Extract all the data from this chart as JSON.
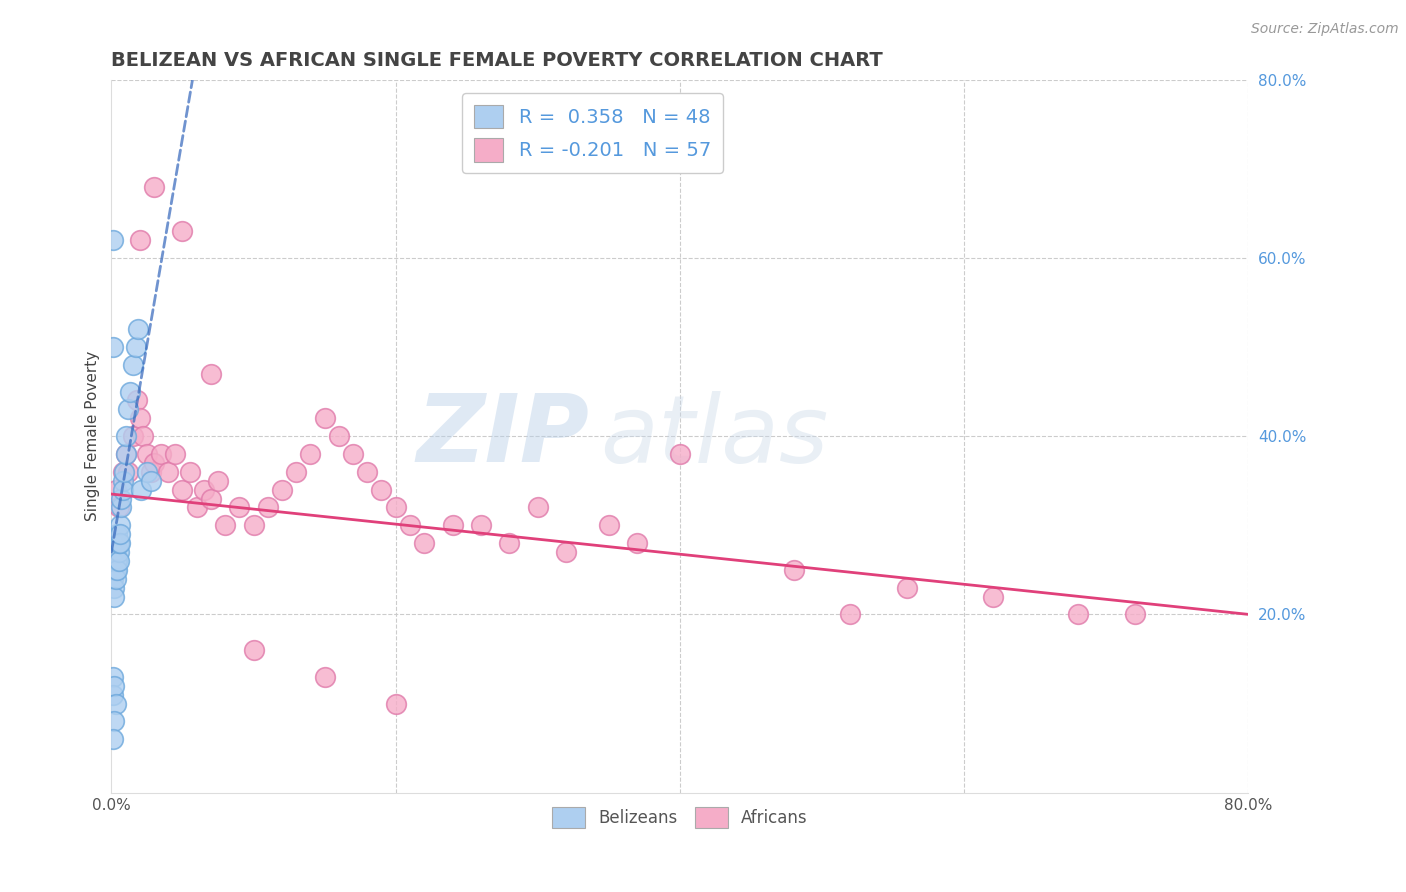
{
  "title": "BELIZEAN VS AFRICAN SINGLE FEMALE POVERTY CORRELATION CHART",
  "source_text": "Source: ZipAtlas.com",
  "ylabel": "Single Female Poverty",
  "watermark_zip": "ZIP",
  "watermark_atlas": "atlas",
  "blue_R": 0.358,
  "blue_N": 48,
  "pink_R": -0.201,
  "pink_N": 57,
  "blue_color": "#aecff0",
  "blue_edge": "#6da8dc",
  "pink_color": "#f5adc8",
  "pink_edge": "#e07aaa",
  "blue_line_color": "#3366bb",
  "pink_line_color": "#e0407a",
  "grid_color": "#cccccc",
  "title_color": "#444444",
  "source_color": "#999999",
  "right_tick_color": "#5599dd",
  "xlim": [
    0.0,
    0.8
  ],
  "ylim": [
    0.0,
    0.8
  ],
  "blue_scatter_x": [
    0.001,
    0.001,
    0.001,
    0.001,
    0.001,
    0.002,
    0.002,
    0.002,
    0.002,
    0.002,
    0.002,
    0.003,
    0.003,
    0.003,
    0.003,
    0.003,
    0.004,
    0.004,
    0.004,
    0.005,
    0.005,
    0.005,
    0.006,
    0.006,
    0.006,
    0.007,
    0.007,
    0.008,
    0.008,
    0.009,
    0.01,
    0.01,
    0.012,
    0.013,
    0.015,
    0.017,
    0.019,
    0.021,
    0.025,
    0.028,
    0.001,
    0.001,
    0.002,
    0.003,
    0.002,
    0.001,
    0.001,
    0.001
  ],
  "blue_scatter_y": [
    0.25,
    0.27,
    0.28,
    0.26,
    0.24,
    0.26,
    0.27,
    0.25,
    0.28,
    0.23,
    0.22,
    0.26,
    0.28,
    0.25,
    0.24,
    0.27,
    0.26,
    0.25,
    0.29,
    0.27,
    0.26,
    0.28,
    0.3,
    0.28,
    0.29,
    0.32,
    0.33,
    0.35,
    0.34,
    0.36,
    0.38,
    0.4,
    0.43,
    0.45,
    0.48,
    0.5,
    0.52,
    0.34,
    0.36,
    0.35,
    0.13,
    0.11,
    0.12,
    0.1,
    0.08,
    0.06,
    0.62,
    0.5
  ],
  "pink_scatter_x": [
    0.003,
    0.005,
    0.008,
    0.01,
    0.012,
    0.015,
    0.018,
    0.02,
    0.022,
    0.025,
    0.028,
    0.03,
    0.035,
    0.04,
    0.045,
    0.05,
    0.055,
    0.06,
    0.065,
    0.07,
    0.075,
    0.08,
    0.09,
    0.1,
    0.11,
    0.12,
    0.13,
    0.14,
    0.15,
    0.16,
    0.17,
    0.18,
    0.19,
    0.2,
    0.21,
    0.22,
    0.24,
    0.26,
    0.28,
    0.3,
    0.32,
    0.35,
    0.37,
    0.4,
    0.48,
    0.52,
    0.56,
    0.62,
    0.68,
    0.72,
    0.02,
    0.03,
    0.05,
    0.07,
    0.1,
    0.15,
    0.2
  ],
  "pink_scatter_y": [
    0.34,
    0.32,
    0.36,
    0.38,
    0.36,
    0.4,
    0.44,
    0.42,
    0.4,
    0.38,
    0.36,
    0.37,
    0.38,
    0.36,
    0.38,
    0.34,
    0.36,
    0.32,
    0.34,
    0.33,
    0.35,
    0.3,
    0.32,
    0.3,
    0.32,
    0.34,
    0.36,
    0.38,
    0.42,
    0.4,
    0.38,
    0.36,
    0.34,
    0.32,
    0.3,
    0.28,
    0.3,
    0.3,
    0.28,
    0.32,
    0.27,
    0.3,
    0.28,
    0.38,
    0.25,
    0.2,
    0.23,
    0.22,
    0.2,
    0.2,
    0.62,
    0.68,
    0.63,
    0.47,
    0.16,
    0.13,
    0.1
  ],
  "blue_trend_x": [
    0.0,
    0.028
  ],
  "blue_trend_y": [
    0.27,
    0.53
  ],
  "pink_trend_x": [
    0.0,
    0.8
  ],
  "pink_trend_y": [
    0.335,
    0.2
  ]
}
